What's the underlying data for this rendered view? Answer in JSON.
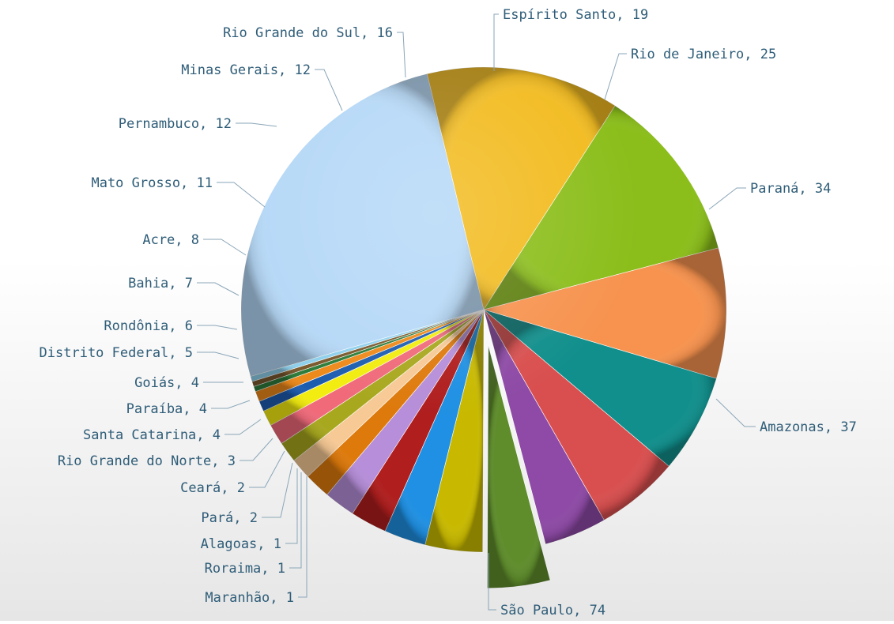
{
  "chart_data": {
    "type": "pie",
    "title": "",
    "slices": [
      {
        "label": "São Paulo",
        "value": 74,
        "color": "#b5d8f7"
      },
      {
        "label": "Amazonas",
        "value": 37,
        "color": "#f2bb1f"
      },
      {
        "label": "Paraná",
        "value": 34,
        "color": "#8bbe1b"
      },
      {
        "label": "Rio de Janeiro",
        "value": 25,
        "color": "#f7934f"
      },
      {
        "label": "Espírito Santo",
        "value": 19,
        "color": "#118f8c"
      },
      {
        "label": "Rio Grande do Sul",
        "value": 16,
        "color": "#d94f4f"
      },
      {
        "label": "Minas Gerais",
        "value": 12,
        "color": "#8e4aa6"
      },
      {
        "label": "Pernambuco",
        "value": 12,
        "color": "#5f8d2c",
        "exploded": true
      },
      {
        "label": "Mato Grosso",
        "value": 11,
        "color": "#c8b900"
      },
      {
        "label": "Acre",
        "value": 8,
        "color": "#1f90e3"
      },
      {
        "label": "Bahia",
        "value": 7,
        "color": "#b01e1e"
      },
      {
        "label": "Rondônia",
        "value": 6,
        "color": "#b68ed9"
      },
      {
        "label": "Distrito Federal",
        "value": 5,
        "color": "#de7a0c"
      },
      {
        "label": "Goiás",
        "value": 4,
        "color": "#f7c995"
      },
      {
        "label": "Paraíba",
        "value": 4,
        "color": "#a8a81f"
      },
      {
        "label": "Santa Catarina",
        "value": 4,
        "color": "#f06a7a"
      },
      {
        "label": "Rio Grande do Norte",
        "value": 3,
        "color": "#f2ec10"
      },
      {
        "label": "Ceará",
        "value": 2,
        "color": "#1d5db0"
      },
      {
        "label": "Pará",
        "value": 2,
        "color": "#ed8a1c"
      },
      {
        "label": "Alagoas",
        "value": 1,
        "color": "#2e7d3a"
      },
      {
        "label": "Roraima",
        "value": 1,
        "color": "#7b5a2e"
      },
      {
        "label": "Maranhão",
        "value": 1,
        "color": "#8fd0ec"
      }
    ],
    "label_format": "{label}, {value}",
    "legend": "none"
  }
}
